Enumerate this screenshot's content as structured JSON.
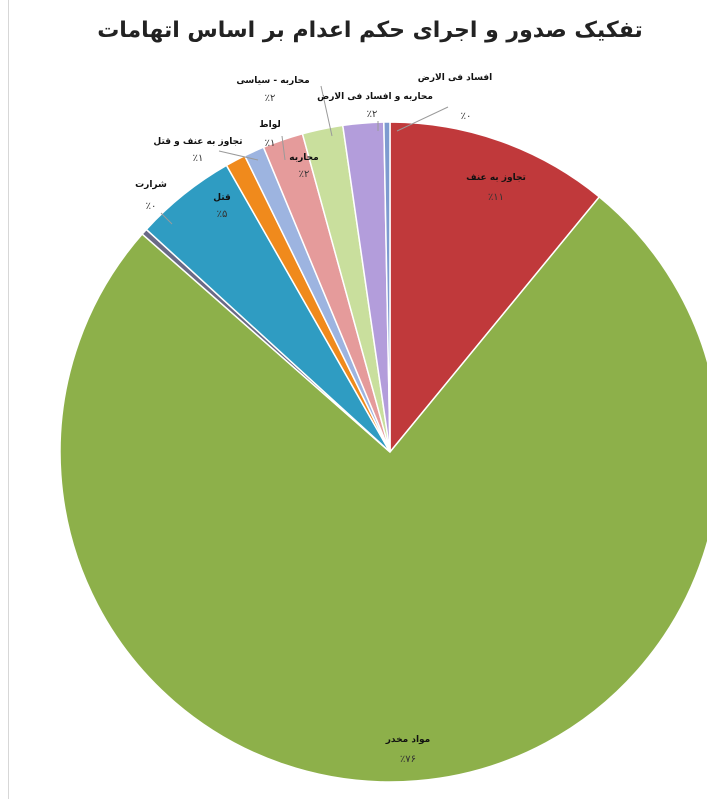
{
  "chart_data": {
    "type": "pie",
    "title": "تفکیک صدور و اجرای حکم اعدام بر اساس اتهامات",
    "start_angle_deg": 0,
    "direction": "clockwise",
    "slices": [
      {
        "name": "تجاوز به عنف",
        "value": 11,
        "pct_label": "٪۱۱",
        "color": "#c0393b"
      },
      {
        "name": "مواد مخدر",
        "value": 76,
        "pct_label": "٪۷۶",
        "color": "#8db04a"
      },
      {
        "name": "شرارت",
        "value": 0.3,
        "pct_label": "٪۰",
        "color": "#6a6a86"
      },
      {
        "name": "قتل",
        "value": 5,
        "pct_label": "٪۵",
        "color": "#2f9cc2"
      },
      {
        "name": "تجاوز به عنف و قتل",
        "value": 1,
        "pct_label": "٪۱",
        "color": "#f08a1c"
      },
      {
        "name": "لواط",
        "value": 1,
        "pct_label": "٪۱",
        "color": "#9db4e0"
      },
      {
        "name": "محاربه",
        "value": 2,
        "pct_label": "٪۲",
        "color": "#e59b9b"
      },
      {
        "name": "محاربه - سیاسی",
        "value": 2,
        "pct_label": "٪۲",
        "color": "#c9df9d"
      },
      {
        "name": "محاربه و افساد فی الارض",
        "value": 2,
        "pct_label": "٪۲",
        "color": "#b39ddb"
      },
      {
        "name": "افساد فی الارض",
        "value": 0.3,
        "pct_label": "٪۰",
        "color": "#7e9bd0"
      }
    ]
  }
}
